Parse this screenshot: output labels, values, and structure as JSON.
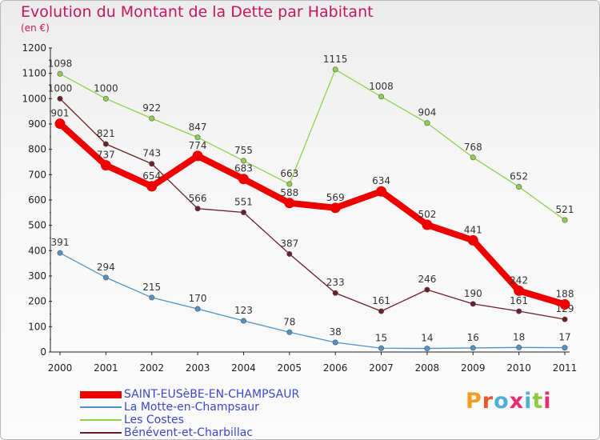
{
  "header": {
    "title": "Evolution du Montant de la Dette par Habitant",
    "subtitle": "(en €)"
  },
  "chart_data": {
    "type": "line",
    "x": [
      "2000",
      "2001",
      "2002",
      "2003",
      "2004",
      "2005",
      "2006",
      "2007",
      "2008",
      "2009",
      "2010",
      "2011"
    ],
    "ylim": [
      0,
      1200
    ],
    "yticks": [
      0,
      100,
      200,
      300,
      400,
      500,
      600,
      700,
      800,
      900,
      1000,
      1100,
      1200
    ],
    "grid": false,
    "legend_position": "bottom-left",
    "series": [
      {
        "name": "SAINT-EUSèBE-EN-CHAMPSAUR",
        "color": "#ee0000",
        "values": [
          901,
          737,
          654,
          774,
          683,
          588,
          569,
          634,
          502,
          441,
          242,
          188
        ]
      },
      {
        "name": "La Motte-en-Champsaur",
        "color": "#4f93c9",
        "values": [
          391,
          294,
          215,
          170,
          123,
          78,
          38,
          15,
          14,
          16,
          18,
          17
        ]
      },
      {
        "name": "Les Costes",
        "color": "#8fd14f",
        "values": [
          1098,
          1000,
          922,
          847,
          755,
          663,
          1115,
          1008,
          904,
          768,
          652,
          521
        ]
      },
      {
        "name": "Bénévent-et-Charbillac",
        "color": "#6b1f28",
        "values": [
          1000,
          821,
          743,
          566,
          551,
          387,
          233,
          161,
          246,
          190,
          161,
          129
        ]
      }
    ]
  },
  "logo": {
    "text": "Proxiti",
    "letter_colors": [
      "#f39c1e",
      "#e8582a",
      "#4fb0d8",
      "#e82a6e",
      "#4fb0d8",
      "#8ccc3f",
      "#e82a6e"
    ]
  }
}
